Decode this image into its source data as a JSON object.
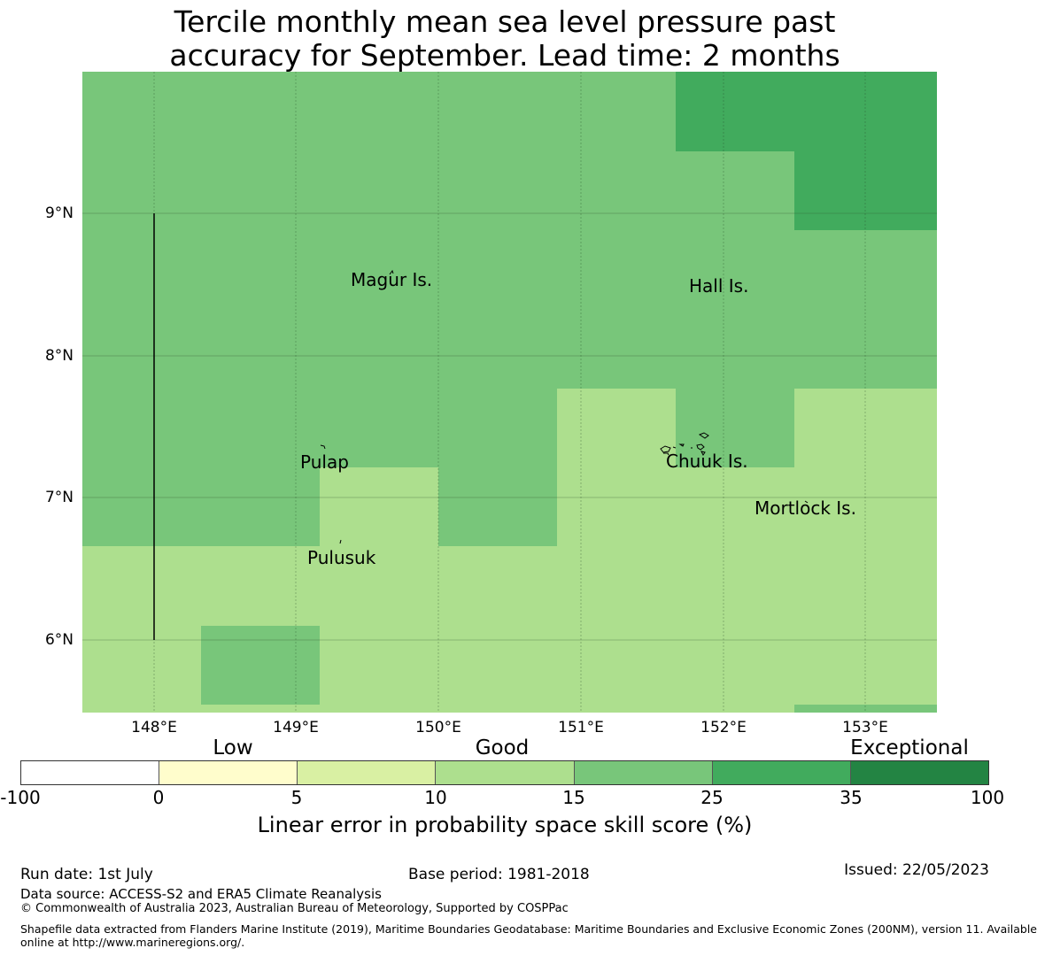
{
  "title": {
    "line1": "Tercile monthly mean sea level pressure past",
    "line2": "accuracy for September. Lead time: 2 months"
  },
  "map": {
    "lon_labels": [
      "148°E",
      "149°E",
      "150°E",
      "151°E",
      "152°E",
      "153°E"
    ],
    "lat_labels": [
      "9°N",
      "8°N",
      "7°N",
      "6°N"
    ],
    "places": [
      "Magur Is.",
      "Hall Is.",
      "Pulap",
      "Chuuk Is.",
      "Mortlock Is.",
      "Pulusuk"
    ],
    "colors": {
      "cat_10_15": "#addf8e",
      "cat_15_25": "#78c67a",
      "cat_25_35": "#41ab5d"
    }
  },
  "colorbar": {
    "categories": [
      "Low",
      "Good",
      "Exceptional"
    ],
    "ticks": [
      "-100",
      "0",
      "5",
      "10",
      "15",
      "25",
      "35",
      "100"
    ],
    "colors": [
      "#ffffff",
      "#fffdcc",
      "#d9f0a3",
      "#addf8e",
      "#78c67a",
      "#41ab5d",
      "#238443"
    ],
    "label": "Linear error in probability space skill score (%)"
  },
  "footer": {
    "run_date": "Run date: 1st July",
    "base_period": "Base period: 1981-2018",
    "issued": "Issued: 22/05/2023",
    "data_source": "Data source: ACCESS-S2 and ERA5 Climate Reanalysis",
    "copyright": "© Commonwealth of Australia 2023, Australian Bureau of Meteorology, Supported by COSPPac",
    "shapefile_line1": "Shapefile data extracted from Flanders Marine Institute (2019), Maritime Boundaries Geodatabase: Maritime Boundaries and Exclusive Economic Zones (200NM), version 11. Available",
    "shapefile_line2": "online at http://www.marineregions.org/."
  }
}
